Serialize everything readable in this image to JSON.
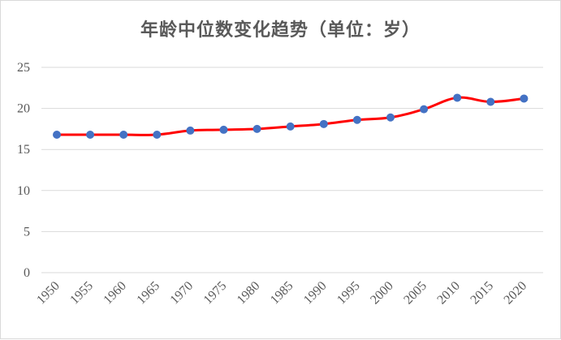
{
  "chart_data": {
    "type": "line",
    "title": "年龄中位数变化趋势（单位：岁）",
    "xlabel": "",
    "ylabel": "",
    "x": [
      "1950",
      "1955",
      "1960",
      "1965",
      "1970",
      "1975",
      "1980",
      "1985",
      "1990",
      "1995",
      "2000",
      "2005",
      "2010",
      "2015",
      "2020"
    ],
    "values": [
      16.8,
      16.8,
      16.8,
      16.8,
      17.3,
      17.4,
      17.5,
      17.8,
      18.1,
      18.6,
      18.9,
      19.9,
      21.3,
      20.8,
      21.2
    ],
    "ylim": [
      0,
      25
    ],
    "yticks": [
      "0",
      "5",
      "10",
      "15",
      "20",
      "25"
    ],
    "grid": true,
    "legend": "none",
    "line_color": "#ff0000",
    "marker_color": "#4472c4",
    "grid_color": "#d9d9d9"
  }
}
